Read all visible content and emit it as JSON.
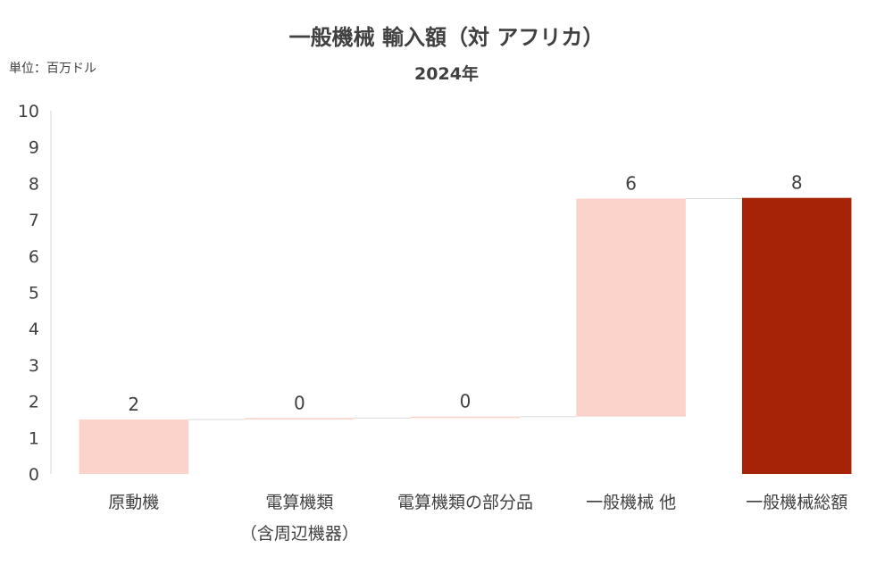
{
  "chart_data": {
    "type": "bar",
    "subtype": "waterfall",
    "title": "一般機械 輸入額（対 アフリカ）",
    "subtitle": "2024年",
    "unit_label": "単位：百万ドル",
    "xlabel": "",
    "ylabel": "",
    "ylim": [
      0,
      10
    ],
    "yticks": [
      0,
      1,
      2,
      3,
      4,
      5,
      6,
      7,
      8,
      9,
      10
    ],
    "grid": false,
    "legend": "none",
    "categories": [
      [
        "原動機"
      ],
      [
        "電算機類",
        "（含周辺機器）"
      ],
      [
        "電算機類の部分品"
      ],
      [
        "一般機械 他"
      ],
      [
        "一般機械総額"
      ]
    ],
    "values": [
      1.5,
      0.04,
      0.04,
      6.0,
      7.6
    ],
    "data_labels": [
      "2",
      "0",
      "0",
      "6",
      "8"
    ],
    "bar_kinds": [
      "step",
      "step",
      "step",
      "step",
      "total"
    ],
    "colors": {
      "step": "#fcd3ca",
      "total": "#a52408",
      "connector": "#d9d9d9",
      "axis": "#d9d9d9"
    }
  }
}
